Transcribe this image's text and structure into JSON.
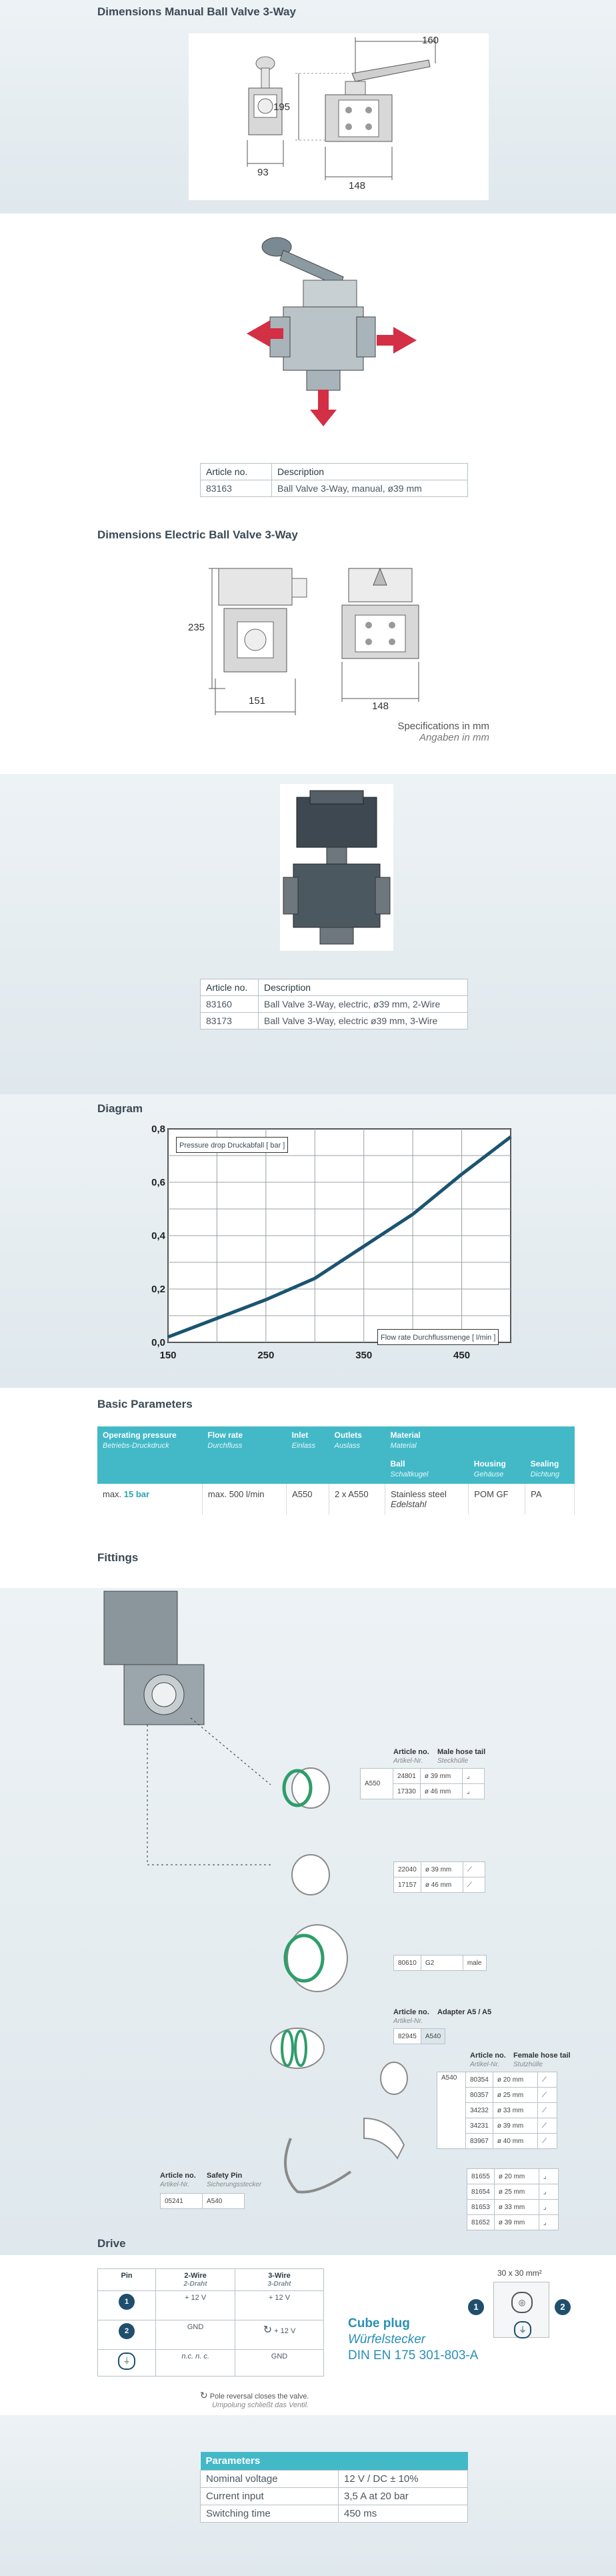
{
  "sec1": {
    "title": "Dimensions Manual Ball Valve 3-Way",
    "dims": {
      "d160": "160",
      "d195": "195",
      "d93": "93",
      "d148": "148"
    },
    "table": {
      "h_article": "Article no.",
      "h_desc": "Description",
      "rows": [
        {
          "art": "83163",
          "desc": "Ball Valve 3-Way, manual, ø39 mm"
        }
      ]
    }
  },
  "sec2": {
    "title": "Dimensions Electric Ball Valve 3-Way",
    "dims": {
      "d235": "235",
      "d151": "151",
      "d148": "148"
    },
    "spec_note": "Specifications in mm",
    "spec_note_de": "Angaben in mm",
    "table": {
      "h_article": "Article no.",
      "h_desc": "Description",
      "rows": [
        {
          "art": "83160",
          "desc": "Ball Valve 3-Way, electric, ø39 mm, 2-Wire"
        },
        {
          "art": "83173",
          "desc": "Ball Valve 3-Way, electric ø39 mm, 3-Wire"
        }
      ]
    }
  },
  "diagram": {
    "title": "Diagram",
    "ylabel_box": "Pressure drop Druckabfall [ bar ]",
    "xlabel_box": "Flow rate Durchflussmenge [ l/min ]"
  },
  "chart_data": {
    "type": "line",
    "xlabel": "Flow rate Durchflussmenge [ l/min ]",
    "ylabel": "Pressure drop Druckabfall [ bar ]",
    "xlim": [
      150,
      500
    ],
    "ylim": [
      0,
      0.8
    ],
    "x_ticks": [
      "150",
      "250",
      "350",
      "450"
    ],
    "y_ticks": [
      "0,0",
      "0,2",
      "0,4",
      "0,6",
      "0,8"
    ],
    "grid": true,
    "series": [
      {
        "x": [
          150,
          200,
          250,
          300,
          350,
          400,
          450,
          500
        ],
        "y": [
          0.02,
          0.09,
          0.16,
          0.24,
          0.36,
          0.48,
          0.63,
          0.77
        ]
      }
    ],
    "color": "#1a5470"
  },
  "basic": {
    "title": "Basic Parameters",
    "headers": {
      "op": "Operating pressure",
      "op_de": "Betriebs-Druckdruck",
      "flow": "Flow rate",
      "flow_de": "Durchfluss",
      "inlet": "Inlet",
      "inlet_de": "Einlass",
      "outlets": "Outlets",
      "outlets_de": "Auslass",
      "material": "Material",
      "material_de": "Material",
      "ball": "Ball",
      "ball_de": "Schaltkugel",
      "housing": "Housing",
      "housing_de": "Gehäuse",
      "sealing": "Sealing",
      "sealing_de": "Dichtung"
    },
    "row": {
      "op_prefix": "max.",
      "op_val": "15 bar",
      "flow": "max. 500 l/min",
      "inlet": "A550",
      "outlets": "2 x A550",
      "ball": "Stainless steel",
      "ball_de": "Edelstahl",
      "housing": "POM GF",
      "sealing": "PA"
    }
  },
  "fittings": {
    "title": "Fittings",
    "male": {
      "h_art": "Article no.",
      "h_art_de": "Artikel-Nr.",
      "h_name": "Male hose tail",
      "h_name_de": "Steckhülle",
      "conn": "A550",
      "rows": [
        {
          "art": "24801",
          "size": "ø 39 mm"
        },
        {
          "art": "17330",
          "size": "ø 46 mm"
        }
      ]
    },
    "male2": {
      "rows": [
        {
          "art": "22040",
          "size": "ø 39 mm"
        },
        {
          "art": "17157",
          "size": "ø 46 mm"
        }
      ]
    },
    "thread": {
      "art": "80610",
      "size": "G2",
      "kind": "male"
    },
    "adapter": {
      "h_art": "Article no.",
      "h_art_de": "Artikel-Nr.",
      "h_name": "Adapter A5 / A5",
      "art": "82945",
      "conn": "A540"
    },
    "female": {
      "h_art": "Article no.",
      "h_art_de": "Artikel-Nr.",
      "h_name": "Female hose tail",
      "h_name_de": "Stutzhülle",
      "conn": "A540",
      "rows": [
        {
          "art": "80354",
          "size": "ø 20 mm"
        },
        {
          "art": "80357",
          "size": "ø 25 mm"
        },
        {
          "art": "34232",
          "size": "ø 33 mm"
        },
        {
          "art": "34231",
          "size": "ø 39 mm"
        },
        {
          "art": "83967",
          "size": "ø 40 mm"
        }
      ]
    },
    "elbow": {
      "rows": [
        {
          "art": "81655",
          "size": "ø 20 mm"
        },
        {
          "art": "81654",
          "size": "ø 25 mm"
        },
        {
          "art": "81653",
          "size": "ø 33 mm"
        },
        {
          "art": "81652",
          "size": "ø 39 mm"
        }
      ]
    },
    "pin": {
      "h_art": "Article no.",
      "h_art_de": "Artikel-Nr.",
      "h_name": "Safety Pin",
      "h_name_de": "Sicherungsstecker",
      "art": "05241",
      "conn": "A540"
    }
  },
  "drive": {
    "title": "Drive",
    "h_pin": "Pin",
    "h_2wire": "2-Wire",
    "h_2wire_de": "2-Draht",
    "h_3wire": "3-Wire",
    "h_3wire_de": "3-Draht",
    "rows": [
      {
        "pin": "1",
        "w2": "+ 12 V",
        "w3": "+ 12 V"
      },
      {
        "pin": "2",
        "w2": "GND",
        "w3": "+ 12 V"
      },
      {
        "pin": "",
        "w2": "n.c. n. c.",
        "w3": "GND"
      }
    ],
    "note": "Pole reversal closes the valve.",
    "note_de": "Umpolung schließt das Ventil.",
    "cube_size": "30 x 30 mm²",
    "cube_title": "Cube plug",
    "cube_title_de": "Würfelstecker",
    "cube_din": "DIN EN 175 301-803-A"
  },
  "params": {
    "title": "Parameters",
    "rows": [
      {
        "k": "Nominal voltage",
        "v": "12 V / DC ± 10%"
      },
      {
        "k": "Current input",
        "v": "3,5 A at 20 bar"
      },
      {
        "k": "Switching time",
        "v": "450 ms"
      }
    ]
  }
}
